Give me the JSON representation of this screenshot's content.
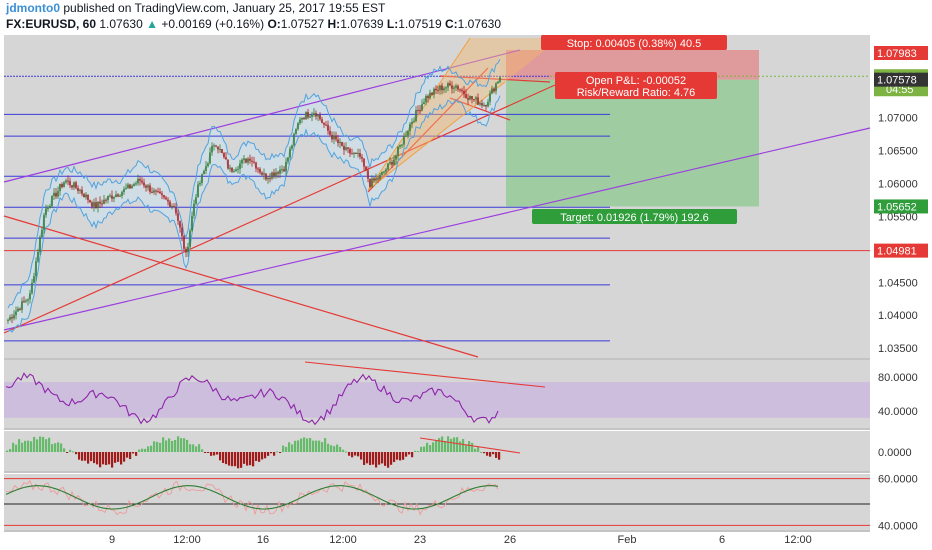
{
  "header": {
    "author": "jdmonto0",
    "published_text": "published on TradingView.com, January 25, 2017 19:55 EST",
    "symbol": "FX:EURUSD, 60",
    "last": "1.07630",
    "change": "+0.00169 (+0.16%)",
    "open_label": "O:",
    "open": "1.07527",
    "high_label": "H:",
    "high": "1.07639",
    "low_label": "L:",
    "low": "1.07519",
    "close_label": "C:",
    "close": "1.07630"
  },
  "colors": {
    "background": "#ffffff",
    "pane": "#d6d6d6",
    "level_line": "#3b3bd9",
    "trend_red": "#e53935",
    "channel_purple": "#9c3fe0",
    "bollinger": "#4fa3e0",
    "candle_up": "#2e7d32",
    "candle_down": "#b71c1c",
    "stop_zone": "#e57373",
    "target_zone": "#81c784",
    "osc_band": "#c9b3e0"
  },
  "annotations": {
    "stop": "Stop: 0.00405 (0.38%) 40.5",
    "pnl": "Open P&L: -0.00052",
    "risk_reward": "Risk/Reward Ratio: 4.76",
    "target": "Target: 0.01926 (1.79%) 192.6"
  },
  "price_tags": {
    "stop_price": "1.07983",
    "last_price": "1.07630",
    "countdown": "04:55",
    "entry_price": "1.07578",
    "target_price": "1.05652",
    "red_level": "1.04981"
  },
  "chart_data": [
    {
      "type": "candlestick",
      "pane": "price",
      "y_axis_ticks": [
        "1.07000",
        "1.06500",
        "1.06000",
        "1.05500",
        "1.05000",
        "1.04500",
        "1.04000",
        "1.03500"
      ],
      "ylim": [
        1.0335,
        1.0815
      ],
      "horizontal_levels": [
        1.0705,
        1.0672,
        1.0611,
        1.0564,
        1.0517,
        1.0446,
        1.0361
      ],
      "red_level": 1.04981,
      "position": {
        "entry": 1.07578,
        "stop": 1.07983,
        "target": 1.05652
      },
      "approx_close_path": [
        {
          "x": "start",
          "y": 1.0395
        },
        {
          "x": "9",
          "y": 1.0575
        },
        {
          "x": "12:00",
          "y": 1.0535
        },
        {
          "x": "16",
          "y": 1.0612
        },
        {
          "x": "12:00",
          "y": 1.0655
        },
        {
          "x": "23",
          "y": 1.07
        },
        {
          "x": "26",
          "y": 1.0763
        }
      ]
    },
    {
      "type": "line",
      "pane": "oscillator",
      "y_axis_ticks": [
        "80.0000",
        "40.0000"
      ],
      "ylim": [
        20,
        100
      ],
      "band": [
        32,
        74
      ]
    },
    {
      "type": "bar",
      "pane": "histogram",
      "y_axis_ticks": [
        "0.0000"
      ]
    },
    {
      "type": "line",
      "pane": "lower-oscillator",
      "y_axis_ticks": [
        "60.0000",
        "40.0000"
      ],
      "ylim": [
        38,
        62
      ]
    }
  ],
  "x_axis": {
    "labels": [
      "9",
      "12:00",
      "16",
      "12:00",
      "23",
      "26",
      "Feb",
      "6",
      "12:00"
    ]
  }
}
